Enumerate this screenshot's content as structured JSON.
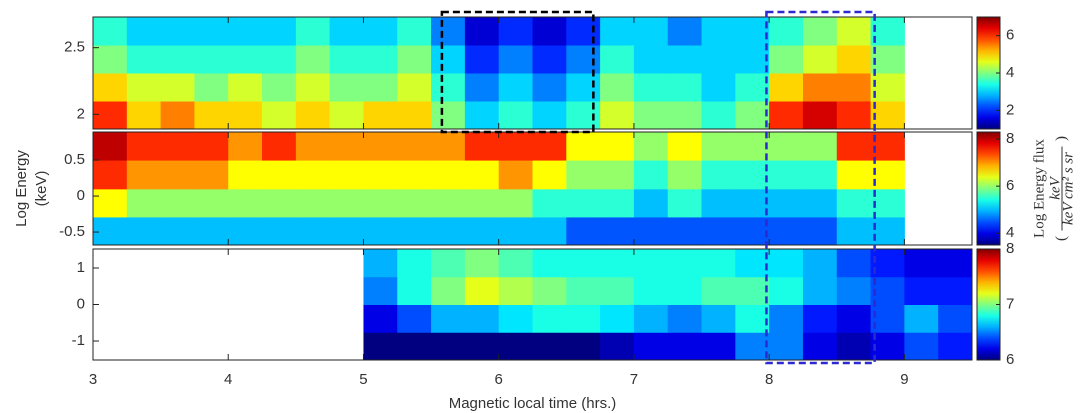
{
  "chart_data": [
    {
      "type": "heatmap",
      "colormap": "jet",
      "xlim": [
        3,
        9.5
      ],
      "xticks": [
        3,
        4,
        5,
        6,
        7,
        8,
        9
      ],
      "xtick_labels": false,
      "ylim": [
        1.89,
        2.73
      ],
      "yticks": [
        2,
        2.5
      ],
      "xbins": [
        3,
        3.25,
        3.5,
        3.75,
        4,
        4.25,
        4.5,
        4.75,
        5,
        5.25,
        5.5,
        5.75,
        6,
        6.25,
        6.5,
        6.75,
        7,
        7.25,
        7.5,
        7.75,
        8,
        8.25,
        8.5,
        8.75,
        9,
        9.25,
        9.5
      ],
      "ybins": [
        1.89,
        2.1,
        2.31,
        2.52,
        2.73
      ],
      "z": [
        [
          6,
          5,
          5.5,
          5,
          5,
          4.5,
          5,
          4.5,
          5,
          5,
          4,
          3,
          3.5,
          3,
          3.5,
          4.5,
          4,
          4,
          3.5,
          4,
          6,
          6.5,
          6,
          5,
          null,
          null
        ],
        [
          5,
          4.5,
          4.5,
          4,
          4.5,
          4,
          4.5,
          4,
          4,
          4.5,
          3.5,
          2.5,
          3,
          2.5,
          3,
          4,
          3.5,
          3.5,
          3,
          3.5,
          5,
          5.5,
          5.5,
          4.5,
          null,
          null
        ],
        [
          4,
          3.5,
          3.5,
          3.5,
          3.5,
          3.5,
          4,
          3.5,
          3.5,
          4,
          3,
          2,
          2.5,
          2,
          2.5,
          3.5,
          3,
          3,
          3,
          3,
          4,
          4.5,
          5,
          4,
          null,
          null
        ],
        [
          3.5,
          3,
          3,
          3,
          3,
          3,
          3.5,
          3,
          3,
          3.5,
          2.5,
          1.5,
          2,
          1.5,
          2,
          3,
          3,
          2.5,
          3,
          3,
          3.5,
          4,
          4.5,
          3.5,
          null,
          null
        ]
      ],
      "clim": [
        1,
        7
      ],
      "cticks": [
        2,
        4,
        6
      ]
    },
    {
      "type": "heatmap",
      "colormap": "jet",
      "xlim": [
        3,
        9.5
      ],
      "xticks": [
        3,
        4,
        5,
        6,
        7,
        8,
        9
      ],
      "xtick_labels": false,
      "ylim": [
        -0.68,
        0.89
      ],
      "yticks": [
        -0.5,
        0,
        0.5
      ],
      "ylabel": [
        "Log Energy",
        "(keV)"
      ],
      "xbins": [
        3,
        3.25,
        3.5,
        3.75,
        4,
        4.25,
        4.5,
        4.75,
        5,
        5.25,
        5.5,
        5.75,
        6,
        6.25,
        6.5,
        6.75,
        7,
        7.25,
        7.5,
        7.75,
        8,
        8.25,
        8.5,
        8.75,
        9,
        9.25,
        9.5
      ],
      "ybins": [
        -0.68,
        -0.29,
        0.1,
        0.5,
        0.89
      ],
      "z": [
        [
          5,
          5,
          5,
          5,
          5,
          5,
          5,
          5,
          5,
          5,
          5,
          5,
          5,
          5,
          4.5,
          4.5,
          4.5,
          4.5,
          4.5,
          4.5,
          4.5,
          4.5,
          5,
          5,
          null,
          null
        ],
        [
          6.5,
          6,
          6,
          6,
          6,
          6,
          6,
          6,
          6,
          6,
          6,
          6,
          6,
          5.5,
          5.5,
          5.5,
          5,
          5.5,
          5,
          5,
          5,
          5,
          5.5,
          5.5,
          null,
          null
        ],
        [
          7.5,
          7,
          7,
          7,
          6.5,
          6.5,
          6.5,
          6.5,
          6.5,
          6.5,
          6.5,
          6.5,
          7,
          6.5,
          6,
          6,
          5.5,
          6,
          5.5,
          5.5,
          5.5,
          5.5,
          6.5,
          6.5,
          null,
          null
        ],
        [
          8,
          7.5,
          7.5,
          7.5,
          7,
          7.5,
          7,
          7,
          7,
          7,
          7,
          7.5,
          7.5,
          7.5,
          6.5,
          6.5,
          6,
          6.5,
          6,
          6,
          6,
          6,
          7.5,
          7.5,
          null,
          null
        ]
      ],
      "clim": [
        3.5,
        8.3
      ],
      "cticks": [
        4,
        6,
        8
      ],
      "colorbar_label": "Log Energy flux",
      "colorbar_units": {
        "numerator": "keV",
        "denominator": "keV cm² s sr"
      }
    },
    {
      "type": "heatmap",
      "colormap": "jet",
      "xlim": [
        3,
        9.5
      ],
      "xticks": [
        3,
        4,
        5,
        6,
        7,
        8,
        9
      ],
      "xtick_labels": true,
      "xlabel": "Magnetic local time (hrs.)",
      "ylim": [
        -1.52,
        1.52
      ],
      "yticks": [
        -1,
        0,
        1
      ],
      "xbins": [
        3,
        3.25,
        3.5,
        3.75,
        4,
        4.25,
        4.5,
        4.75,
        5,
        5.25,
        5.5,
        5.75,
        6,
        6.25,
        6.5,
        6.75,
        7,
        7.25,
        7.5,
        7.75,
        8,
        8.25,
        8.5,
        8.75,
        9,
        9.25,
        9.5
      ],
      "ybins": [
        -1.52,
        -0.76,
        0,
        0.76,
        1.52
      ],
      "z": [
        [
          null,
          null,
          null,
          null,
          null,
          null,
          null,
          null,
          6,
          6,
          6,
          6,
          6,
          6,
          6,
          6.1,
          6.2,
          6.2,
          6.2,
          6.5,
          6.5,
          6.2,
          6.1,
          6.2,
          6.4,
          6.3
        ],
        [
          null,
          null,
          null,
          null,
          null,
          null,
          null,
          null,
          6.2,
          6.4,
          6.6,
          6.6,
          6.7,
          6.8,
          6.8,
          6.7,
          6.6,
          6.5,
          6.6,
          6.8,
          6.5,
          6.3,
          6.2,
          6.4,
          6.6,
          6.4
        ],
        [
          null,
          null,
          null,
          null,
          null,
          null,
          null,
          null,
          6.5,
          6.8,
          7,
          7.2,
          7.1,
          7,
          6.9,
          6.9,
          6.8,
          6.8,
          6.9,
          6.9,
          6.8,
          6.6,
          6.5,
          6.4,
          6.3,
          6.3
        ],
        [
          null,
          null,
          null,
          null,
          null,
          null,
          null,
          null,
          6.6,
          6.8,
          6.9,
          7,
          6.9,
          6.8,
          6.8,
          6.8,
          6.8,
          6.8,
          6.8,
          6.7,
          6.7,
          6.6,
          6.4,
          6.3,
          6.2,
          6.2
        ]
      ],
      "clim": [
        6,
        8
      ],
      "cticks": [
        6,
        7,
        8
      ]
    }
  ],
  "regions": [
    {
      "x": [
        5.58,
        6.7
      ],
      "color": "#000000",
      "panels": [
        0,
        0
      ]
    },
    {
      "x": [
        7.98,
        8.78
      ],
      "color": "#2a2ad0",
      "panels": [
        0,
        2
      ]
    }
  ]
}
